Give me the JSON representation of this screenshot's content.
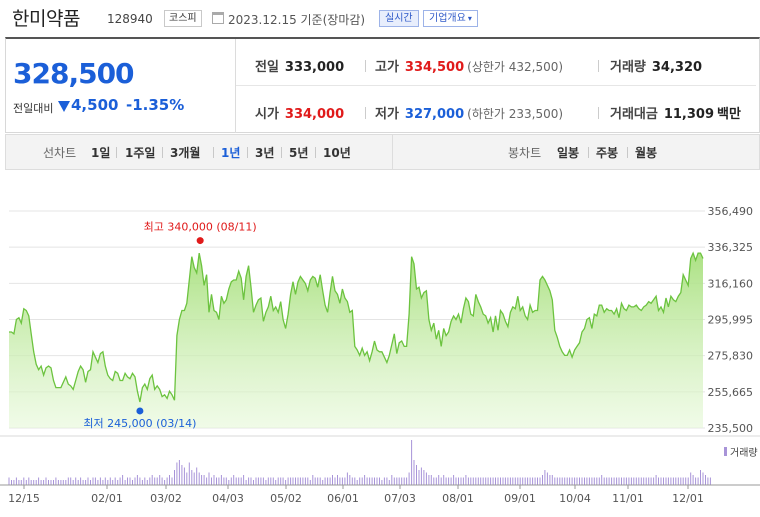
{
  "header": {
    "name": "한미약품",
    "code": "128940",
    "market": "코스피",
    "date_basis": "2023.12.15  기준(장마감)",
    "realtime": "실시간",
    "company_overview": "기업개요"
  },
  "quote": {
    "price": "328,500",
    "change_label": "전일대비",
    "change_amount": "4,500",
    "change_rate": "-1.35%",
    "prev_close_label": "전일",
    "prev_close": "333,000",
    "high_label": "고가",
    "high": "334,500",
    "upper_limit": "(상한가 432,500)",
    "volume_label": "거래량",
    "volume": "34,320",
    "open_label": "시가",
    "open": "334,000",
    "low_label": "저가",
    "low": "327,000",
    "lower_limit": "(하한가 233,500)",
    "turnover_label": "거래대금",
    "turnover": "11,309",
    "turnover_unit": "백만"
  },
  "periods": {
    "line_label": "선차트",
    "line_items": [
      "1일",
      "1주일",
      "3개월",
      "1년",
      "3년",
      "5년",
      "10년"
    ],
    "active": "1년",
    "candle_label": "봉차트",
    "candle_items": [
      "일봉",
      "주봉",
      "월봉"
    ]
  },
  "colors": {
    "up": "#e01a1a",
    "down": "#1b5fd8",
    "line": "#6cc33f",
    "fill": "#c8eea8",
    "volume": "#a894d8"
  },
  "chart_data": {
    "type": "area",
    "x_ticks": [
      "12/15",
      "02/01",
      "03/02",
      "04/03",
      "05/02",
      "06/01",
      "07/03",
      "08/01",
      "09/01",
      "10/04",
      "11/01",
      "12/01"
    ],
    "y_ticks": [
      "356,490",
      "336,325",
      "316,160",
      "295,995",
      "275,830",
      "255,665",
      "235,500"
    ],
    "ylim": [
      235500,
      356490
    ],
    "grid": true,
    "legend": "거래량",
    "high_annotation": "최고 340,000 (08/11)",
    "low_annotation": "최저 245,000 (03/14)",
    "series": [
      {
        "values": [
          289000,
          289000,
          288000,
          296000,
          297000,
          294000,
          302000,
          301000,
          298000,
          288000,
          278000,
          271000,
          268000,
          270000,
          265000,
          269000,
          270000,
          269000,
          262000,
          258000,
          258000,
          258000,
          261000,
          264000,
          260000,
          259000,
          257000,
          262000,
          267000,
          270000,
          268000,
          261000,
          267000,
          268000,
          278000,
          275000,
          272000,
          277000,
          278000,
          270000,
          265000,
          263000,
          262000,
          267000,
          266000,
          262000,
          262000,
          266000,
          264000,
          263000,
          266000,
          264000,
          256000,
          250000,
          258000,
          260000,
          257000,
          263000,
          265000,
          257000,
          259000,
          257000,
          253000,
          254000,
          252000,
          256000,
          254000,
          251000,
          287000,
          296000,
          301000,
          301000,
          305000,
          318000,
          331000,
          325000,
          322000,
          333000,
          326000,
          315000,
          321000,
          300000,
          310000,
          301000,
          300000,
          296000,
          309000,
          305000,
          307000,
          313000,
          317000,
          318000,
          318000,
          323000,
          319000,
          307000,
          320000,
          326000,
          314000,
          300000,
          304000,
          307000,
          308000,
          295000,
          300000,
          303000,
          309000,
          301000,
          303000,
          300000,
          306000,
          296000,
          291000,
          299000,
          310000,
          317000,
          310000,
          317000,
          320000,
          318000,
          316000,
          312000,
          318000,
          320000,
          319000,
          314000,
          321000,
          312000,
          304000,
          300000,
          311000,
          320000,
          312000,
          310000,
          305000,
          313000,
          308000,
          306000,
          300000,
          301000,
          281000,
          279000,
          276000,
          280000,
          276000,
          278000,
          273000,
          278000,
          284000,
          279000,
          278000,
          278000,
          275000,
          272000,
          276000,
          282000,
          288000,
          277000,
          283000,
          284000,
          281000,
          281000,
          299000,
          331000,
          327000,
          313000,
          314000,
          308000,
          311000,
          312000,
          296000,
          290000,
          294000,
          285000,
          290000,
          281000,
          291000,
          287000,
          289000,
          295000,
          298000,
          296000,
          299000,
          294000,
          302000,
          308000,
          306000,
          299000,
          298000,
          310000,
          306000,
          303000,
          299000,
          298000,
          294000,
          297000,
          289000,
          298000,
          290000,
          301000,
          299000,
          295000,
          292000,
          300000,
          303000,
          302000,
          309000,
          301000,
          303000,
          298000,
          296000,
          304000,
          300000,
          301000,
          301000,
          318000,
          320000,
          318000,
          315000,
          312000,
          307000,
          290000,
          286000,
          281000,
          278000,
          276000,
          276000,
          279000,
          275000,
          279000,
          281000,
          283000,
          289000,
          291000,
          296000,
          297000,
          291000,
          299000,
          298000,
          304000,
          304000,
          300000,
          302000,
          301000,
          301000,
          299000,
          302000,
          297000,
          305000,
          302000,
          301000,
          304000,
          303000,
          303000,
          304000,
          302000,
          301000,
          303000,
          304000,
          306000,
          305000,
          307000,
          309000,
          301000,
          303000,
          300000,
          308000,
          303000,
          309000,
          307000,
          306000,
          309000,
          311000,
          321000,
          318000,
          315000,
          330000,
          333000,
          329000,
          333000,
          333000,
          330000
        ]
      },
      {
        "name": "거래량",
        "values": [
          3,
          2,
          2,
          3,
          2,
          2,
          3,
          2,
          3,
          2,
          2,
          2,
          3,
          2,
          2,
          3,
          2,
          2,
          2,
          3,
          2,
          2,
          2,
          2,
          3,
          3,
          2,
          3,
          2,
          3,
          2,
          2,
          3,
          2,
          3,
          3,
          2,
          3,
          2,
          3,
          2,
          3,
          2,
          3,
          2,
          3,
          4,
          2,
          3,
          3,
          2,
          3,
          4,
          3,
          2,
          3,
          2,
          3,
          4,
          3,
          3,
          4,
          3,
          2,
          3,
          4,
          3,
          6,
          9,
          10,
          8,
          7,
          5,
          9,
          6,
          5,
          7,
          5,
          4,
          4,
          3,
          5,
          3,
          4,
          3,
          3,
          4,
          3,
          3,
          2,
          3,
          4,
          3,
          3,
          3,
          4,
          2,
          3,
          3,
          2,
          3,
          3,
          3,
          3,
          2,
          3,
          3,
          3,
          2,
          3,
          3,
          3,
          2,
          3,
          3,
          3,
          3,
          3,
          3,
          3,
          3,
          3,
          2,
          4,
          3,
          3,
          3,
          2,
          3,
          3,
          3,
          4,
          3,
          4,
          3,
          3,
          3,
          5,
          4,
          3,
          3,
          2,
          3,
          3,
          4,
          3,
          3,
          3,
          3,
          3,
          3,
          2,
          3,
          3,
          2,
          4,
          3,
          3,
          3,
          3,
          3,
          3,
          5,
          18,
          10,
          8,
          6,
          7,
          6,
          5,
          4,
          4,
          3,
          3,
          4,
          3,
          4,
          3,
          3,
          3,
          4,
          3,
          3,
          3,
          3,
          4,
          3,
          3,
          3,
          3,
          3,
          3,
          3,
          3,
          3,
          3,
          3,
          3,
          3,
          3,
          3,
          3,
          3,
          3,
          3,
          3,
          3,
          3,
          3,
          3,
          3,
          3,
          3,
          3,
          3,
          3,
          4,
          6,
          5,
          4,
          4,
          3,
          3,
          3,
          3,
          3,
          3,
          3,
          3,
          3,
          3,
          3,
          3,
          3,
          3,
          3,
          3,
          3,
          3,
          3,
          4,
          3,
          3,
          3,
          3,
          3,
          3,
          3,
          3,
          3,
          3,
          3,
          3,
          3,
          3,
          3,
          3,
          3,
          3,
          3,
          3,
          3,
          4,
          3,
          3,
          3,
          3,
          3,
          3,
          3,
          3,
          3,
          3,
          3,
          3,
          3,
          5,
          4,
          3,
          3,
          6,
          5,
          4,
          3,
          3
        ]
      }
    ]
  }
}
